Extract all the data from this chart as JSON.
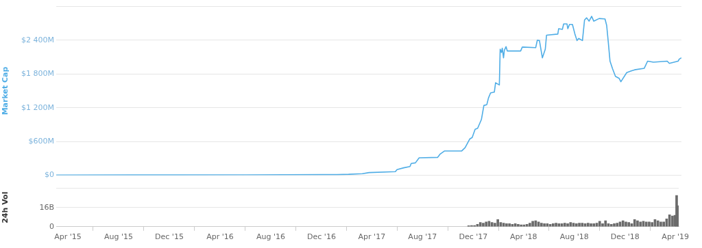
{
  "chart_data": [
    {
      "type": "line",
      "ylabel": "Market Cap",
      "color": "#4fade6",
      "grid": "y",
      "tick_labels": "y",
      "xlim": [
        "2015-03-04",
        "2019-04-09"
      ],
      "ylim": [
        0,
        3000
      ],
      "yticks": [
        {
          "value": 0,
          "label": "$0"
        },
        {
          "value": 600,
          "label": "$600M"
        },
        {
          "value": 1200,
          "label": "$1 200M"
        },
        {
          "value": 1800,
          "label": "$1 800M"
        },
        {
          "value": 2400,
          "label": "$2 400M"
        },
        {
          "value": 3000,
          "label": null
        }
      ],
      "x": [
        "2015-03-04",
        "2015-09-01",
        "2016-06-01",
        "2016-12-01",
        "2017-01-05",
        "2017-02-01",
        "2017-03-06",
        "2017-03-22",
        "2017-05-24",
        "2017-05-28",
        "2017-06-13",
        "2017-06-28",
        "2017-07-01",
        "2017-07-11",
        "2017-07-20",
        "2017-09-02",
        "2017-09-08",
        "2017-09-19",
        "2017-10-30",
        "2017-11-07",
        "2017-11-18",
        "2017-11-24",
        "2017-12-01",
        "2017-12-07",
        "2017-12-16",
        "2017-12-22",
        "2017-12-29",
        "2018-01-02",
        "2018-01-07",
        "2018-01-16",
        "2018-01-19",
        "2018-01-28",
        "2018-01-30",
        "2018-02-02",
        "2018-02-04",
        "2018-02-07",
        "2018-02-09",
        "2018-02-13",
        "2018-02-16",
        "2018-03-20",
        "2018-03-24",
        "2018-04-25",
        "2018-04-29",
        "2018-05-04",
        "2018-05-11",
        "2018-05-18",
        "2018-05-21",
        "2018-06-17",
        "2018-06-19",
        "2018-06-28",
        "2018-07-01",
        "2018-07-09",
        "2018-07-11",
        "2018-07-15",
        "2018-07-22",
        "2018-07-28",
        "2018-08-02",
        "2018-08-06",
        "2018-08-15",
        "2018-08-20",
        "2018-08-25",
        "2018-08-31",
        "2018-09-06",
        "2018-09-11",
        "2018-09-24",
        "2018-10-08",
        "2018-10-12",
        "2018-10-16",
        "2018-10-20",
        "2018-10-26",
        "2018-11-02",
        "2018-11-11",
        "2018-11-15",
        "2018-11-29",
        "2018-12-10",
        "2018-12-18",
        "2019-01-10",
        "2019-01-18",
        "2019-02-01",
        "2019-03-06",
        "2019-03-11",
        "2019-04-01",
        "2019-04-04",
        "2019-04-09"
      ],
      "values": [
        2,
        3,
        5,
        10,
        10,
        15,
        27,
        46,
        62,
        100,
        131,
        154,
        208,
        219,
        308,
        316,
        373,
        431,
        431,
        489,
        643,
        670,
        816,
        835,
        989,
        1240,
        1255,
        1374,
        1463,
        1478,
        1644,
        1605,
        2241,
        2183,
        2260,
        2087,
        2221,
        2287,
        2210,
        2210,
        2279,
        2268,
        2402,
        2395,
        2087,
        2241,
        2491,
        2510,
        2606,
        2595,
        2691,
        2691,
        2606,
        2683,
        2683,
        2510,
        2395,
        2433,
        2395,
        2761,
        2799,
        2741,
        2826,
        2741,
        2787,
        2780,
        2664,
        2356,
        2029,
        1894,
        1759,
        1721,
        1663,
        1825,
        1856,
        1875,
        1902,
        2029,
        2010,
        2029,
        1990,
        2029,
        2067,
        2087
      ]
    },
    {
      "type": "bar",
      "ylabel": "24h Vol",
      "color": "#6b6b6b",
      "grid": "y",
      "xlim": [
        "2015-03-04",
        "2019-04-09"
      ],
      "ylim": [
        0,
        32
      ],
      "yticks": [
        0,
        {
          "value": 16,
          "label": "16B"
        },
        {
          "value": 32,
          "label": null
        }
      ],
      "xticks": [
        {
          "value": "2015-04-01",
          "label": "Apr '15"
        },
        {
          "value": "2015-08-01",
          "label": "Aug '15"
        },
        {
          "value": "2015-12-01",
          "label": "Dec '15"
        },
        {
          "value": "2016-04-01",
          "label": "Apr '16"
        },
        {
          "value": "2016-08-01",
          "label": "Aug '16"
        },
        {
          "value": "2016-12-01",
          "label": "Dec '16"
        },
        {
          "value": "2017-04-01",
          "label": "Apr '17"
        },
        {
          "value": "2017-08-01",
          "label": "Aug '17"
        },
        {
          "value": "2017-12-01",
          "label": "Dec '17"
        },
        {
          "value": "2018-04-01",
          "label": "Apr '18"
        },
        {
          "value": "2018-08-01",
          "label": "Aug '18"
        },
        {
          "value": "2018-12-01",
          "label": "Dec '18"
        },
        {
          "value": "2019-04-01",
          "label": "Apr '19"
        }
      ],
      "x": [
        "2017-11-20",
        "2017-11-27",
        "2017-12-04",
        "2017-12-11",
        "2017-12-18",
        "2017-12-25",
        "2018-01-01",
        "2018-01-08",
        "2018-01-15",
        "2018-01-22",
        "2018-01-29",
        "2018-02-05",
        "2018-02-12",
        "2018-02-19",
        "2018-02-26",
        "2018-03-05",
        "2018-03-12",
        "2018-03-19",
        "2018-03-26",
        "2018-04-02",
        "2018-04-09",
        "2018-04-16",
        "2018-04-23",
        "2018-04-30",
        "2018-05-07",
        "2018-05-14",
        "2018-05-21",
        "2018-05-28",
        "2018-06-04",
        "2018-06-11",
        "2018-06-18",
        "2018-06-25",
        "2018-07-02",
        "2018-07-09",
        "2018-07-16",
        "2018-07-23",
        "2018-07-30",
        "2018-08-06",
        "2018-08-13",
        "2018-08-20",
        "2018-08-27",
        "2018-09-03",
        "2018-09-10",
        "2018-09-17",
        "2018-09-24",
        "2018-10-01",
        "2018-10-08",
        "2018-10-15",
        "2018-10-22",
        "2018-10-29",
        "2018-11-05",
        "2018-11-12",
        "2018-11-19",
        "2018-11-26",
        "2018-12-03",
        "2018-12-10",
        "2018-12-17",
        "2018-12-24",
        "2018-12-31",
        "2019-01-07",
        "2019-01-14",
        "2019-01-21",
        "2019-01-28",
        "2019-02-04",
        "2019-02-11",
        "2019-02-18",
        "2019-02-25",
        "2019-03-04",
        "2019-03-11",
        "2019-03-18",
        "2019-03-25",
        "2019-03-31",
        "2019-04-04",
        "2019-04-08"
      ],
      "values": [
        0.8,
        1,
        1,
        2,
        3.5,
        3,
        4,
        4.5,
        3.5,
        3,
        6,
        3.5,
        3,
        2.5,
        2.5,
        2,
        2.5,
        2,
        1.5,
        1.5,
        2,
        3,
        4.5,
        5,
        4,
        3,
        2.5,
        2.5,
        2,
        2.5,
        3,
        2.5,
        2.5,
        3,
        2.5,
        3.5,
        3,
        2.5,
        3,
        3,
        2.5,
        3,
        2.5,
        2.5,
        3,
        4.5,
        2.5,
        5,
        2.5,
        2,
        2.5,
        3,
        4,
        5,
        4,
        3.5,
        2.5,
        6,
        5,
        4,
        4.5,
        4,
        4,
        3.5,
        6,
        5,
        4,
        4,
        6.5,
        10,
        9,
        9.5,
        26,
        17.5
      ]
    }
  ]
}
